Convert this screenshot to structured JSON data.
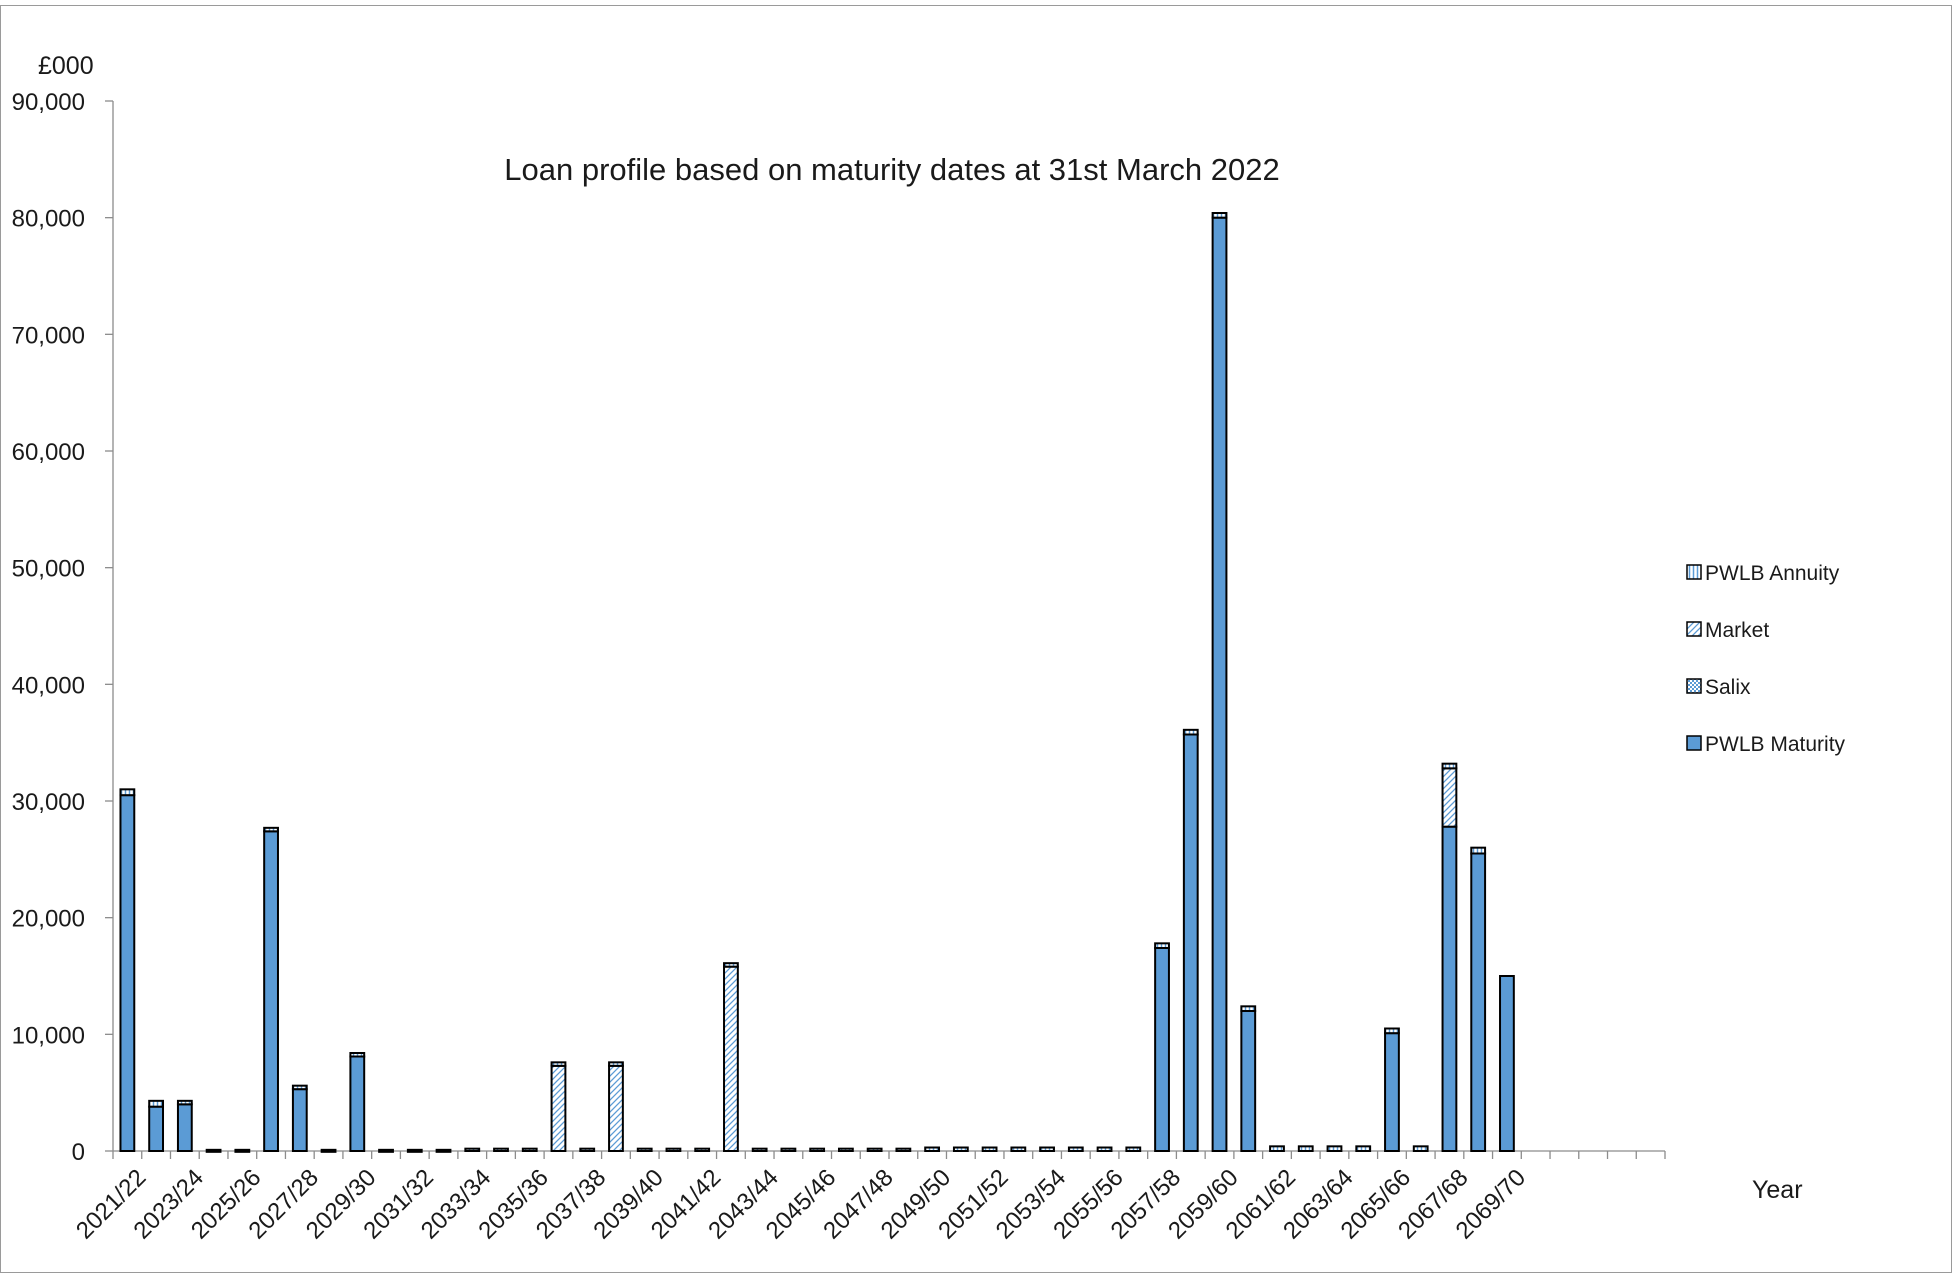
{
  "chart_data": {
    "type": "bar",
    "stacked": true,
    "title": "Loan profile based on maturity dates at 31st March 2022",
    "ylabel": "£000",
    "xlabel": "Year",
    "ylim": [
      0,
      90000
    ],
    "y_ticks": [
      "0",
      "10,000",
      "20,000",
      "30,000",
      "40,000",
      "50,000",
      "60,000",
      "70,000",
      "80,000",
      "90,000"
    ],
    "y_tick_values": [
      0,
      10000,
      20000,
      30000,
      40000,
      50000,
      60000,
      70000,
      80000,
      90000
    ],
    "grid": false,
    "legend_position": "right",
    "categories": [
      "2021/22",
      "2022/23",
      "2023/24",
      "2024/25",
      "2025/26",
      "2026/27",
      "2027/28",
      "2028/29",
      "2029/30",
      "2030/31",
      "2031/32",
      "2032/33",
      "2033/34",
      "2034/35",
      "2035/36",
      "2036/37",
      "2037/38",
      "2038/39",
      "2039/40",
      "2040/41",
      "2041/42",
      "2042/43",
      "2043/44",
      "2044/45",
      "2045/46",
      "2046/47",
      "2047/48",
      "2048/49",
      "2049/50",
      "2050/51",
      "2051/52",
      "2052/53",
      "2053/54",
      "2054/55",
      "2055/56",
      "2056/57",
      "2057/58",
      "2058/59",
      "2059/60",
      "2060/61",
      "2061/62",
      "2062/63",
      "2063/64",
      "2064/65",
      "2065/66",
      "2066/67",
      "2067/68",
      "2068/69",
      "2069/70",
      "2070/71",
      "2071/72",
      "2072/73",
      "2073/74",
      "2074/75"
    ],
    "x_tick_labels": [
      "2021/22",
      "2023/24",
      "2025/26",
      "2027/28",
      "2029/30",
      "2031/32",
      "2033/34",
      "2035/36",
      "2037/38",
      "2039/40",
      "2041/42",
      "2043/44",
      "2045/46",
      "2047/48",
      "2049/50",
      "2051/52",
      "2053/54",
      "2055/56",
      "2057/58",
      "2059/60",
      "2061/62",
      "2063/64",
      "2065/66",
      "2067/68",
      "2069/70"
    ],
    "series": [
      {
        "name": "PWLB Maturity",
        "pattern": "solid",
        "values": [
          30500,
          3800,
          4000,
          0,
          0,
          27400,
          5300,
          0,
          8100,
          0,
          0,
          0,
          0,
          0,
          0,
          0,
          0,
          0,
          0,
          0,
          0,
          0,
          0,
          0,
          0,
          0,
          0,
          0,
          0,
          0,
          0,
          0,
          0,
          0,
          0,
          0,
          17400,
          35700,
          80000,
          12000,
          0,
          0,
          0,
          0,
          10100,
          0,
          27800,
          25500,
          15000,
          0,
          0,
          0,
          0,
          0
        ]
      },
      {
        "name": "Salix",
        "pattern": "stipple",
        "values": [
          0,
          0,
          0,
          0,
          0,
          0,
          0,
          0,
          0,
          0,
          0,
          0,
          0,
          0,
          0,
          0,
          0,
          0,
          0,
          0,
          0,
          0,
          0,
          0,
          0,
          0,
          0,
          0,
          0,
          0,
          0,
          0,
          0,
          0,
          0,
          0,
          0,
          0,
          0,
          0,
          0,
          0,
          0,
          0,
          0,
          0,
          0,
          0,
          0,
          0,
          0,
          0,
          0,
          0
        ]
      },
      {
        "name": "Market",
        "pattern": "diagonal",
        "values": [
          0,
          0,
          0,
          0,
          0,
          0,
          0,
          0,
          0,
          0,
          0,
          0,
          0,
          0,
          0,
          7300,
          0,
          7300,
          0,
          0,
          0,
          15800,
          0,
          0,
          0,
          0,
          0,
          0,
          0,
          0,
          0,
          0,
          0,
          0,
          0,
          0,
          0,
          0,
          0,
          0,
          0,
          0,
          0,
          0,
          0,
          0,
          5000,
          0,
          0,
          0,
          0,
          0,
          0,
          0
        ]
      },
      {
        "name": "PWLB Annuity",
        "pattern": "vertical",
        "values": [
          500,
          500,
          300,
          100,
          100,
          300,
          300,
          100,
          300,
          100,
          100,
          100,
          200,
          200,
          200,
          300,
          200,
          300,
          200,
          200,
          200,
          300,
          200,
          200,
          200,
          200,
          200,
          200,
          300,
          300,
          300,
          300,
          300,
          300,
          300,
          300,
          400,
          400,
          400,
          400,
          400,
          400,
          400,
          400,
          400,
          400,
          400,
          500,
          0,
          0,
          0,
          0,
          0,
          0
        ]
      }
    ],
    "legend_order": [
      "PWLB Annuity",
      "Market",
      "Salix",
      "PWLB Maturity"
    ],
    "colors": {
      "fill": "#5b9bd5",
      "edge": "#000000",
      "pattern_fill": "#ffffff",
      "pattern_line": "#5b9bd5"
    }
  }
}
